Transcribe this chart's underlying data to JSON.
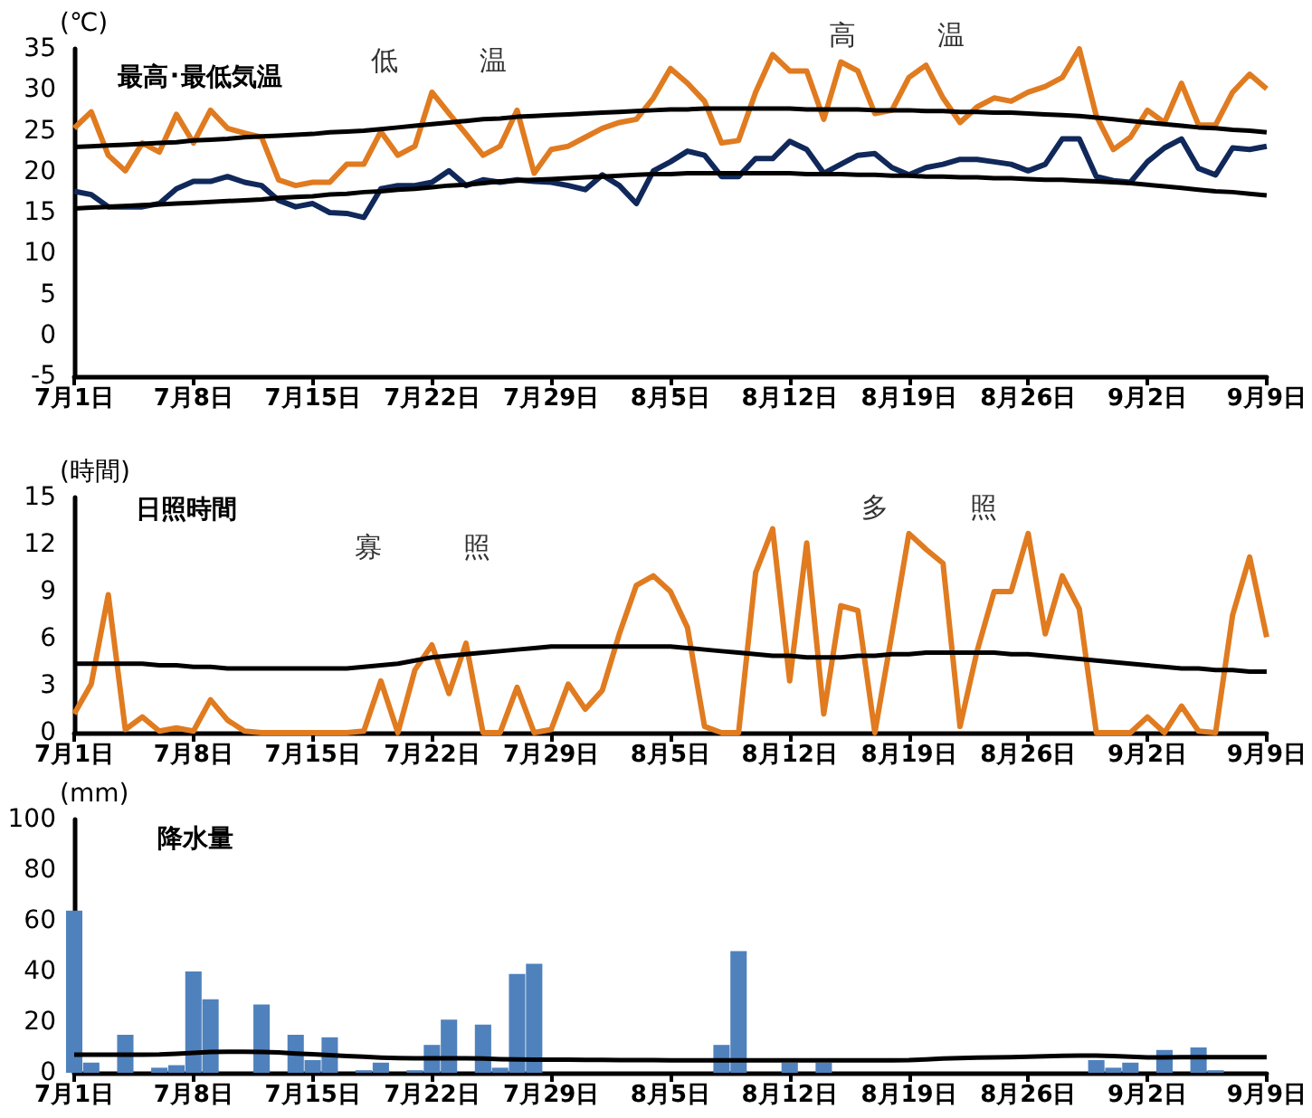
{
  "chart_data": [
    {
      "type": "line",
      "title": "最高･最低気温",
      "ylabel": "(℃)",
      "annotations": [
        "低　　　温",
        "高　　　温"
      ],
      "grid": false,
      "categories": [
        "7月1日",
        null,
        null,
        null,
        null,
        null,
        null,
        "7月8日",
        null,
        null,
        null,
        null,
        null,
        null,
        "7月15日",
        null,
        null,
        null,
        null,
        null,
        null,
        "7月22日",
        null,
        null,
        null,
        null,
        null,
        null,
        "7月29日",
        null,
        null,
        null,
        null,
        null,
        null,
        "8月5日",
        null,
        null,
        null,
        null,
        null,
        null,
        "8月12日",
        null,
        null,
        null,
        null,
        null,
        null,
        "8月19日",
        null,
        null,
        null,
        null,
        null,
        null,
        "8月26日",
        null,
        null,
        null,
        null,
        null,
        null,
        "9月2日",
        null,
        null,
        null,
        null,
        null,
        null,
        "9月9日"
      ],
      "ylim": [
        -5,
        35
      ],
      "yticks": [
        -5,
        0,
        5,
        10,
        15,
        20,
        25,
        30,
        35
      ],
      "series": [
        {
          "color": "#e07b20",
          "values": [
            25.3,
            27.3,
            22.0,
            20.1,
            23.5,
            22.4,
            27.0,
            23.5,
            27.5,
            25.3,
            24.7,
            24.2,
            19.0,
            18.3,
            18.7,
            18.7,
            20.9,
            20.9,
            24.9,
            22.0,
            23.1,
            29.7,
            27.1,
            24.6,
            22.0,
            23.1,
            27.5,
            19.8,
            22.7,
            23.1,
            24.2,
            25.3,
            26.0,
            26.4,
            29.0,
            32.6,
            30.8,
            28.6,
            23.5,
            23.8,
            29.7,
            34.3,
            32.3,
            32.3,
            26.4,
            33.4,
            32.3,
            27.1,
            27.5,
            31.5,
            33.0,
            29.0,
            26.0,
            27.9,
            29.0,
            28.6,
            29.7,
            30.4,
            31.5,
            35.0,
            26.8,
            22.7,
            24.2,
            27.5,
            26.0,
            30.8,
            25.7,
            25.7,
            29.7,
            31.9,
            30.1
          ]
        },
        {
          "color": "#10285a",
          "values": [
            17.6,
            17.2,
            15.7,
            15.7,
            15.7,
            16.1,
            17.9,
            18.8,
            18.8,
            19.4,
            18.7,
            18.3,
            16.5,
            15.7,
            16.1,
            15.0,
            14.9,
            14.4,
            17.9,
            18.3,
            18.3,
            18.7,
            20.1,
            18.3,
            19.0,
            18.7,
            19.0,
            18.8,
            18.7,
            18.3,
            17.8,
            19.6,
            18.3,
            16.1,
            20.1,
            21.2,
            22.5,
            22.0,
            19.4,
            19.4,
            21.6,
            21.6,
            23.7,
            22.7,
            19.8,
            20.9,
            22.0,
            22.2,
            20.5,
            19.6,
            20.5,
            20.9,
            21.5,
            21.5,
            21.2,
            20.9,
            20.1,
            20.9,
            24.0,
            24.0,
            19.4,
            18.9,
            18.7,
            21.2,
            22.9,
            24.0,
            20.4,
            19.6,
            22.9,
            22.7,
            23.1
          ]
        },
        {
          "color": "#000000",
          "values": [
            23.0,
            23.1,
            23.2,
            23.3,
            23.4,
            23.5,
            23.6,
            23.8,
            23.9,
            24.0,
            24.2,
            24.3,
            24.4,
            24.5,
            24.6,
            24.8,
            24.9,
            25.0,
            25.2,
            25.4,
            25.6,
            25.8,
            26.0,
            26.2,
            26.4,
            26.5,
            26.7,
            26.8,
            26.9,
            27.0,
            27.1,
            27.2,
            27.3,
            27.4,
            27.5,
            27.6,
            27.6,
            27.7,
            27.7,
            27.7,
            27.7,
            27.7,
            27.7,
            27.6,
            27.6,
            27.6,
            27.6,
            27.5,
            27.5,
            27.5,
            27.4,
            27.4,
            27.3,
            27.3,
            27.2,
            27.2,
            27.1,
            27.0,
            26.9,
            26.8,
            26.6,
            26.4,
            26.2,
            26.0,
            25.8,
            25.6,
            25.4,
            25.3,
            25.1,
            25.0,
            24.8
          ]
        },
        {
          "color": "#000000",
          "values": [
            15.5,
            15.6,
            15.7,
            15.8,
            15.9,
            16.0,
            16.1,
            16.2,
            16.3,
            16.4,
            16.5,
            16.6,
            16.8,
            16.9,
            17.0,
            17.2,
            17.3,
            17.5,
            17.6,
            17.8,
            17.9,
            18.1,
            18.3,
            18.4,
            18.6,
            18.8,
            18.9,
            19.0,
            19.1,
            19.2,
            19.3,
            19.4,
            19.5,
            19.6,
            19.7,
            19.7,
            19.8,
            19.8,
            19.8,
            19.8,
            19.8,
            19.8,
            19.8,
            19.7,
            19.7,
            19.7,
            19.6,
            19.6,
            19.5,
            19.5,
            19.4,
            19.4,
            19.3,
            19.3,
            19.2,
            19.2,
            19.1,
            19.0,
            19.0,
            18.9,
            18.8,
            18.7,
            18.6,
            18.4,
            18.2,
            18.0,
            17.8,
            17.6,
            17.5,
            17.3,
            17.1
          ]
        }
      ]
    },
    {
      "type": "line",
      "title": "日照時間",
      "ylabel": "(時間)",
      "annotations": [
        "寡　　　照",
        "多　　　照"
      ],
      "grid": false,
      "categories": [
        "7月1日",
        null,
        null,
        null,
        null,
        null,
        null,
        "7月8日",
        null,
        null,
        null,
        null,
        null,
        null,
        "7月15日",
        null,
        null,
        null,
        null,
        null,
        null,
        "7月22日",
        null,
        null,
        null,
        null,
        null,
        null,
        "7月29日",
        null,
        null,
        null,
        null,
        null,
        null,
        "8月5日",
        null,
        null,
        null,
        null,
        null,
        null,
        "8月12日",
        null,
        null,
        null,
        null,
        null,
        null,
        "8月19日",
        null,
        null,
        null,
        null,
        null,
        null,
        "8月26日",
        null,
        null,
        null,
        null,
        null,
        null,
        "9月2日",
        null,
        null,
        null,
        null,
        null,
        null,
        "9月9日"
      ],
      "ylim": [
        0,
        15
      ],
      "yticks": [
        0,
        3,
        6,
        9,
        12,
        15
      ],
      "series": [
        {
          "color": "#e07b20",
          "values": [
            1.2,
            3.1,
            8.8,
            0.2,
            1.0,
            0.1,
            0.3,
            0.1,
            2.1,
            0.8,
            0.1,
            0,
            0,
            0,
            0,
            0,
            0,
            0.1,
            3.3,
            0,
            4.0,
            5.6,
            2.5,
            5.7,
            0,
            0,
            2.9,
            0,
            0.2,
            3.1,
            1.5,
            2.7,
            6.3,
            9.4,
            10.0,
            9.0,
            6.7,
            0.4,
            0,
            0,
            10.2,
            13.0,
            3.3,
            12.1,
            1.2,
            8.1,
            7.8,
            0,
            6.3,
            12.7,
            11.7,
            10.8,
            0.4,
            5.2,
            9.0,
            9.0,
            12.7,
            6.3,
            10.0,
            7.9,
            0,
            0,
            0,
            1.0,
            0,
            1.7,
            0.1,
            0,
            7.5,
            11.2,
            6.1
          ]
        },
        {
          "color": "#000000",
          "values": [
            4.4,
            4.4,
            4.4,
            4.4,
            4.4,
            4.3,
            4.3,
            4.2,
            4.2,
            4.1,
            4.1,
            4.1,
            4.1,
            4.1,
            4.1,
            4.1,
            4.1,
            4.2,
            4.3,
            4.4,
            4.6,
            4.8,
            4.9,
            5.0,
            5.1,
            5.2,
            5.3,
            5.4,
            5.5,
            5.5,
            5.5,
            5.5,
            5.5,
            5.5,
            5.5,
            5.5,
            5.4,
            5.3,
            5.2,
            5.1,
            5.0,
            4.9,
            4.9,
            4.8,
            4.8,
            4.8,
            4.9,
            4.9,
            5.0,
            5.0,
            5.1,
            5.1,
            5.1,
            5.1,
            5.1,
            5.0,
            5.0,
            4.9,
            4.8,
            4.7,
            4.6,
            4.5,
            4.4,
            4.3,
            4.2,
            4.1,
            4.1,
            4.0,
            4.0,
            3.9,
            3.9
          ]
        }
      ]
    },
    {
      "type": "bar",
      "title": "降水量",
      "ylabel": "(mm)",
      "grid": false,
      "categories": [
        "7月1日",
        null,
        null,
        null,
        null,
        null,
        null,
        "7月8日",
        null,
        null,
        null,
        null,
        null,
        null,
        "7月15日",
        null,
        null,
        null,
        null,
        null,
        null,
        "7月22日",
        null,
        null,
        null,
        null,
        null,
        null,
        "7月29日",
        null,
        null,
        null,
        null,
        null,
        null,
        "8月5日",
        null,
        null,
        null,
        null,
        null,
        null,
        "8月12日",
        null,
        null,
        null,
        null,
        null,
        null,
        "8月19日",
        null,
        null,
        null,
        null,
        null,
        null,
        "8月26日",
        null,
        null,
        null,
        null,
        null,
        null,
        "9月2日",
        null,
        null,
        null,
        null,
        null,
        null,
        "9月9日"
      ],
      "ylim": [
        0,
        100
      ],
      "yticks": [
        0,
        20,
        40,
        60,
        80,
        100
      ],
      "series": [
        {
          "type": "bar",
          "color": "#4f81bd",
          "values": [
            64,
            4,
            0,
            15,
            0,
            2,
            3,
            40,
            29,
            0,
            0,
            27,
            0,
            15,
            5,
            14,
            0,
            1,
            4,
            0,
            1,
            11,
            21,
            0,
            19,
            2,
            39,
            43,
            0,
            0,
            0,
            0,
            0,
            0,
            0,
            0,
            0,
            0,
            11,
            48,
            0,
            0,
            4,
            0,
            4,
            0,
            0,
            0,
            0,
            0,
            0,
            0,
            0,
            0,
            0,
            0,
            0,
            0,
            0,
            0,
            5,
            2,
            4,
            0,
            9,
            0,
            10,
            1,
            0,
            0,
            0
          ]
        },
        {
          "type": "line",
          "color": "#000000",
          "values": [
            7.1,
            7.1,
            7.1,
            7.1,
            7.1,
            7.2,
            7.5,
            7.9,
            8.2,
            8.3,
            8.3,
            8.2,
            8.0,
            7.6,
            7.3,
            7.0,
            6.6,
            6.3,
            6.0,
            5.8,
            5.7,
            5.7,
            5.7,
            5.7,
            5.6,
            5.4,
            5.3,
            5.2,
            5.2,
            5.2,
            5.1,
            5.1,
            5.0,
            5.0,
            5.0,
            4.9,
            4.9,
            4.9,
            4.9,
            4.9,
            4.9,
            4.9,
            4.9,
            4.9,
            4.9,
            4.9,
            4.9,
            4.9,
            4.9,
            5.0,
            5.3,
            5.6,
            5.8,
            6.0,
            6.1,
            6.2,
            6.3,
            6.5,
            6.7,
            6.8,
            6.8,
            6.6,
            6.3,
            6.1,
            6.1,
            6.2,
            6.2,
            6.2,
            6.2,
            6.2,
            6.2
          ]
        }
      ]
    }
  ]
}
